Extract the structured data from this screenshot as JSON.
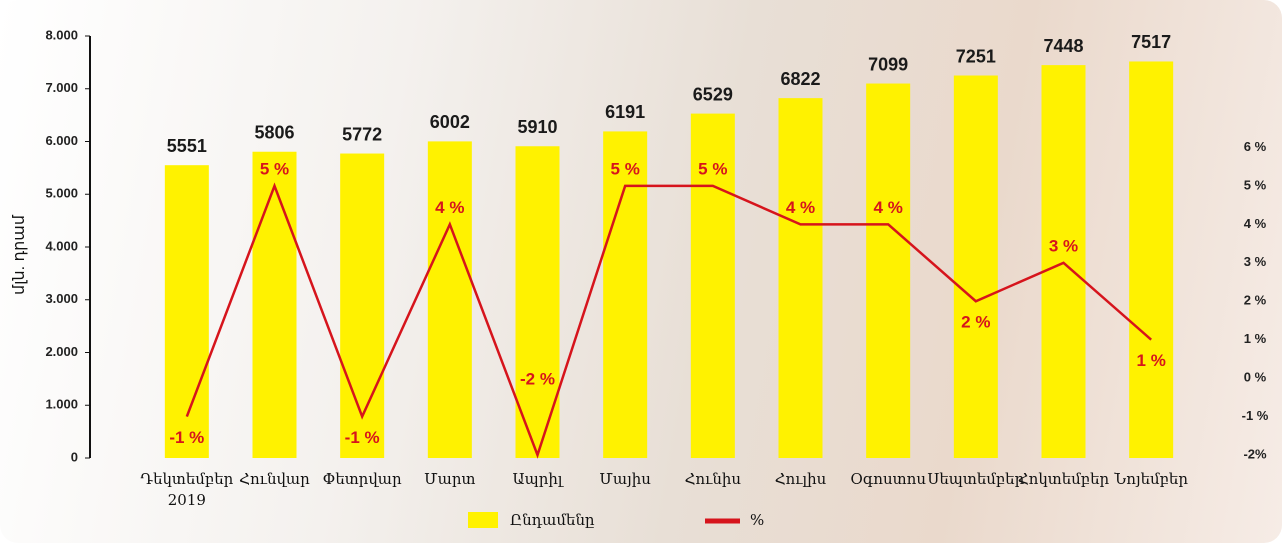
{
  "chart_data": {
    "type": "bar-line",
    "categories": [
      "Դեկտեմբեր 2019",
      "Հունվար",
      "Փետրվար",
      "Մարտ",
      "Ապրիլ",
      "Մայիս",
      "Հունիս",
      "Հուլիս",
      "Օգոստոս",
      "Սեպտեմբեր",
      "Հոկտեմբեր",
      "Նոյեմբեր"
    ],
    "y_label": "մլն. դրամ",
    "series": [
      {
        "name": "Ընդամենը",
        "color": "#fff200",
        "values": [
          5551,
          5806,
          5772,
          6002,
          5910,
          6191,
          6529,
          6822,
          7099,
          7251,
          7448,
          7517
        ]
      },
      {
        "name": "%",
        "color": "#d6141c",
        "axis": "y2",
        "values": [
          -1,
          5,
          -1,
          4,
          -2,
          5,
          5,
          4,
          4,
          2,
          3,
          1
        ],
        "value_labels": [
          "-1 %",
          "5 %",
          "-1 %",
          "4 %",
          "-2 %",
          "5 %",
          "5 %",
          "4 %",
          "4 %",
          "2 %",
          "3 %",
          "1 %"
        ]
      }
    ],
    "ylim": [
      0,
      8000
    ],
    "yticks": [
      0,
      {
        "value": 1000,
        "label": "1.000"
      },
      {
        "value": 2000,
        "label": "2.000"
      },
      {
        "value": 3000,
        "label": "3.000"
      },
      {
        "value": 4000,
        "label": "4.000"
      },
      {
        "value": 5000,
        "label": "5.000"
      },
      {
        "value": 6000,
        "label": "6.000"
      },
      {
        "value": 7000,
        "label": "7.000"
      },
      {
        "value": 8000,
        "label": "8.000"
      }
    ],
    "y2lim": [
      -2,
      8.9
    ],
    "y2ticks": [
      {
        "value": -2,
        "label": "-2%"
      },
      {
        "value": -1,
        "label": "-1 %"
      },
      {
        "value": 0,
        "label": "0 %"
      },
      {
        "value": 1,
        "label": "1 %"
      },
      {
        "value": 2,
        "label": "2 %"
      },
      {
        "value": 3,
        "label": "3 %"
      },
      {
        "value": 4,
        "label": "4 %"
      },
      {
        "value": 5,
        "label": "5 %"
      },
      {
        "value": 6,
        "label": "6 %"
      }
    ]
  }
}
